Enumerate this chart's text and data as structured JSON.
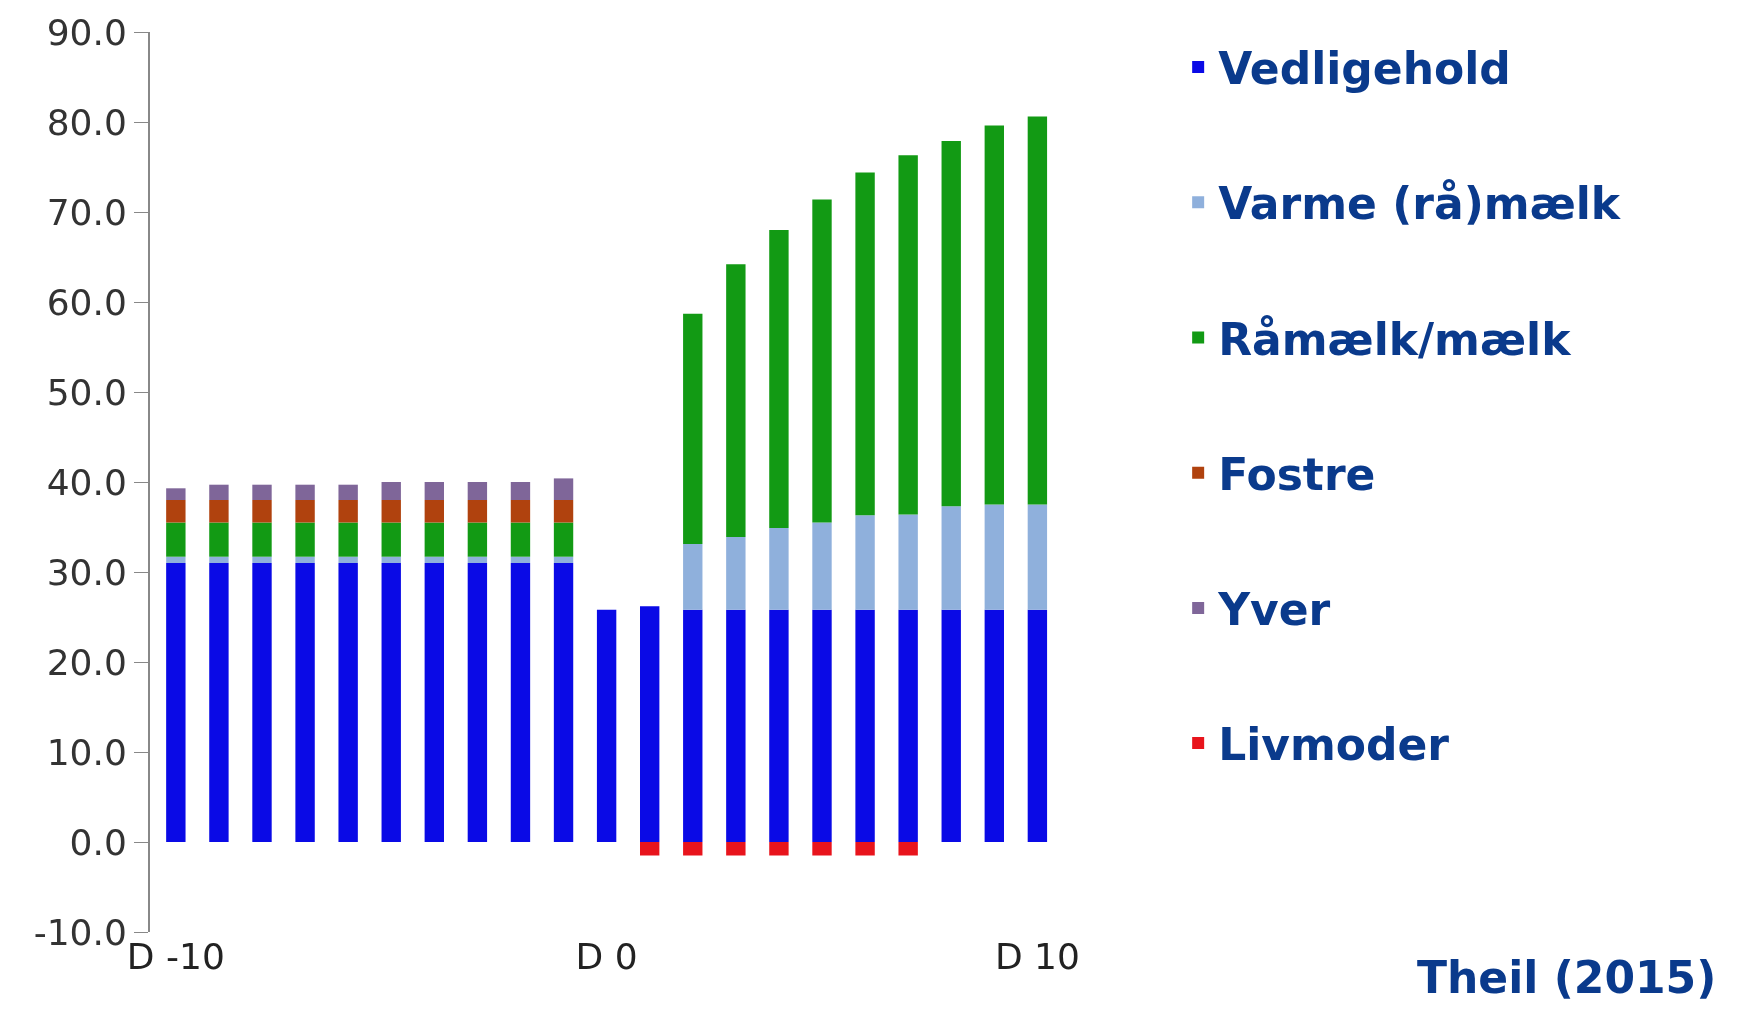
{
  "chart_data": {
    "type": "bar",
    "stacked": true,
    "categories": [
      "D -10",
      null,
      null,
      null,
      null,
      null,
      null,
      null,
      null,
      null,
      "D 0",
      null,
      null,
      null,
      null,
      null,
      null,
      null,
      null,
      null,
      "D 10"
    ],
    "series": [
      {
        "name": "Vedligehold",
        "color": "#0a0ae6",
        "values": [
          31,
          31,
          31,
          31,
          31,
          31,
          31,
          31,
          31,
          31,
          25.8,
          26.2,
          25.8,
          25.8,
          25.8,
          25.8,
          25.8,
          25.8,
          25.8,
          25.8,
          25.8
        ]
      },
      {
        "name": "Varme (rå)mælk",
        "color": "#8fb0dc",
        "values": [
          0.7,
          0.7,
          0.7,
          0.7,
          0.7,
          0.7,
          0.7,
          0.7,
          0.7,
          0.7,
          null,
          null,
          7.3,
          8.1,
          9.1,
          9.7,
          10.5,
          10.6,
          11.5,
          11.7,
          11.7
        ]
      },
      {
        "name": "Råmælk/mælk",
        "color": "#129a14",
        "values": [
          3.8,
          3.8,
          3.8,
          3.8,
          3.8,
          3.8,
          3.8,
          3.8,
          3.8,
          3.8,
          null,
          null,
          25.6,
          30.3,
          33.1,
          35.9,
          38.1,
          39.9,
          40.6,
          42.1,
          43.1
        ]
      },
      {
        "name": "Fostre",
        "color": "#b0420e",
        "values": [
          2.5,
          2.5,
          2.5,
          2.5,
          2.5,
          2.5,
          2.5,
          2.5,
          2.5,
          2.5,
          null,
          null,
          null,
          null,
          null,
          null,
          null,
          null,
          null,
          null,
          null
        ]
      },
      {
        "name": "Yver",
        "color": "#7f6699",
        "values": [
          1.3,
          1.7,
          1.7,
          1.7,
          1.7,
          2.0,
          2.0,
          2.0,
          2.0,
          2.4,
          null,
          null,
          null,
          null,
          null,
          null,
          null,
          null,
          null,
          null,
          null
        ]
      },
      {
        "name": "Livmoder",
        "color": "#e8141c",
        "values": [
          null,
          null,
          null,
          null,
          null,
          null,
          null,
          null,
          null,
          null,
          null,
          -1.5,
          -1.5,
          -1.5,
          -1.5,
          -1.5,
          -1.5,
          -1.5,
          null,
          null,
          null
        ]
      }
    ],
    "ylim": [
      -10,
      90
    ],
    "yticks": [
      {
        "value": -10,
        "label": "-10.0"
      },
      {
        "value": 0,
        "label": "0.0"
      },
      {
        "value": 10,
        "label": "10.0"
      },
      {
        "value": 20,
        "label": "20.0"
      },
      {
        "value": 30,
        "label": "30.0"
      },
      {
        "value": 40,
        "label": "40.0"
      },
      {
        "value": 50,
        "label": "50.0"
      },
      {
        "value": 60,
        "label": "60.0"
      },
      {
        "value": 70,
        "label": "70.0"
      },
      {
        "value": 80,
        "label": "80.0"
      },
      {
        "value": 90,
        "label": "90.0"
      }
    ],
    "legend": "right",
    "annotations": [
      "Theil (2015)"
    ]
  }
}
